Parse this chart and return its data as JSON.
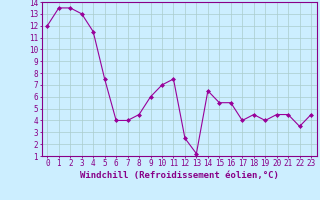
{
  "x": [
    0,
    1,
    2,
    3,
    4,
    5,
    6,
    7,
    8,
    9,
    10,
    11,
    12,
    13,
    14,
    15,
    16,
    17,
    18,
    19,
    20,
    21,
    22,
    23
  ],
  "y": [
    12,
    13.5,
    13.5,
    13,
    11.5,
    7.5,
    4,
    4,
    4.5,
    6,
    7,
    7.5,
    2.5,
    1.2,
    6.5,
    5.5,
    5.5,
    4,
    4.5,
    4,
    4.5,
    4.5,
    3.5,
    4.5
  ],
  "line_color": "#990099",
  "marker": "D",
  "marker_size": 2,
  "bg_color": "#cceeff",
  "grid_color": "#aacccc",
  "xlim": [
    -0.5,
    23.5
  ],
  "ylim": [
    1,
    14
  ],
  "yticks": [
    1,
    2,
    3,
    4,
    5,
    6,
    7,
    8,
    9,
    10,
    11,
    12,
    13,
    14
  ],
  "xticks": [
    0,
    1,
    2,
    3,
    4,
    5,
    6,
    7,
    8,
    9,
    10,
    11,
    12,
    13,
    14,
    15,
    16,
    17,
    18,
    19,
    20,
    21,
    22,
    23
  ],
  "xlabel": "Windchill (Refroidissement éolien,°C)",
  "xlabel_fontsize": 6.5,
  "tick_fontsize": 5.5,
  "spine_color": "#880088",
  "axis_label_color": "#880088"
}
